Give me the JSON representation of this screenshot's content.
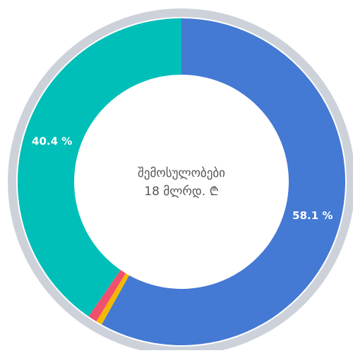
{
  "chart_data": {
    "type": "donut",
    "center_text": [
      "შემოსულობები",
      "18 მლრდ. ₾"
    ],
    "values": [
      58.1,
      0.6,
      0.9,
      40.4
    ],
    "value_labels": [
      "58.1 %",
      null,
      null,
      "40.4 %"
    ],
    "colors": [
      "#4479d4",
      "#f5b800",
      "#f0506e",
      "#00bfb8"
    ],
    "ring_color": "#cdd2da"
  }
}
